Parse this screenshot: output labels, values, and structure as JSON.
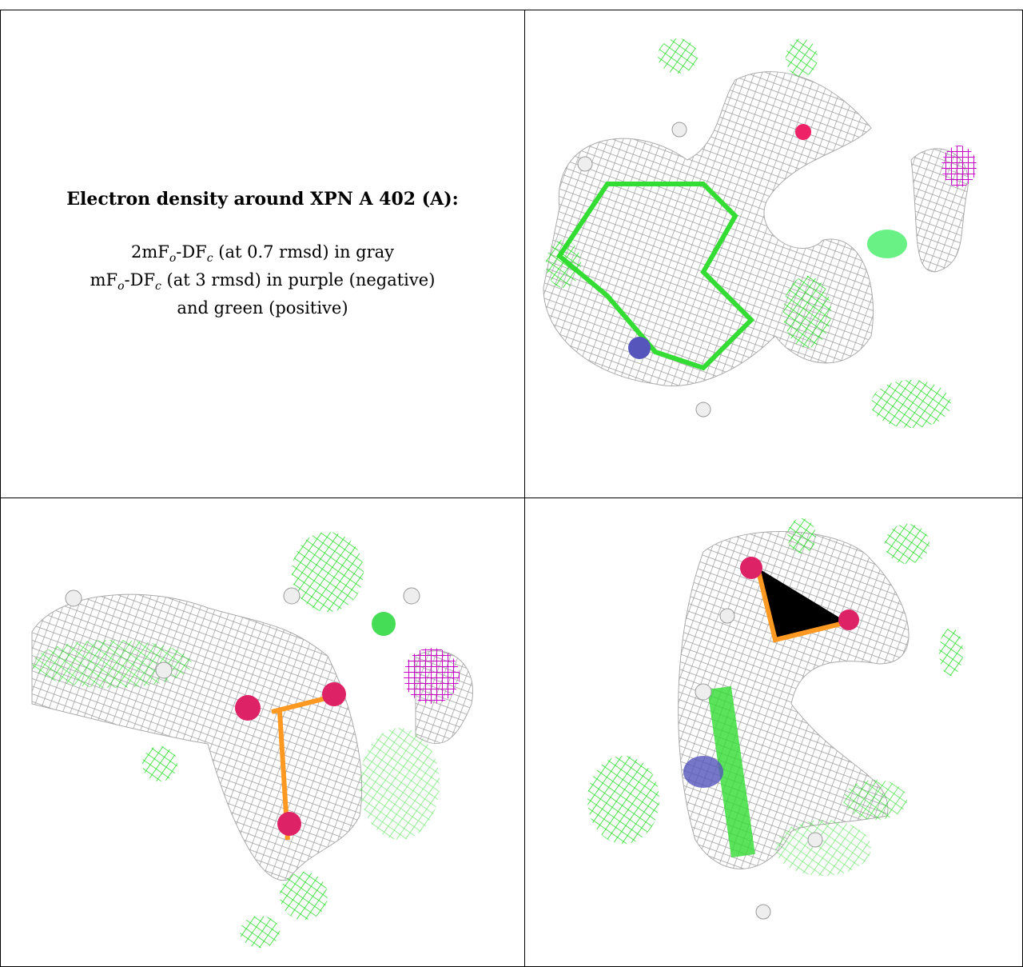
{
  "caption": {
    "title": "Electron density around XPN A 402 (A):",
    "lines": [
      [
        "2mF",
        "o",
        "-DF",
        "c",
        " (at 0.7 rmsd) in gray"
      ],
      [
        "mF",
        "o",
        "-DF",
        "c",
        " (at 3 rmsd) in purple (negative)"
      ],
      [
        "and green (positive)"
      ]
    ]
  }
}
